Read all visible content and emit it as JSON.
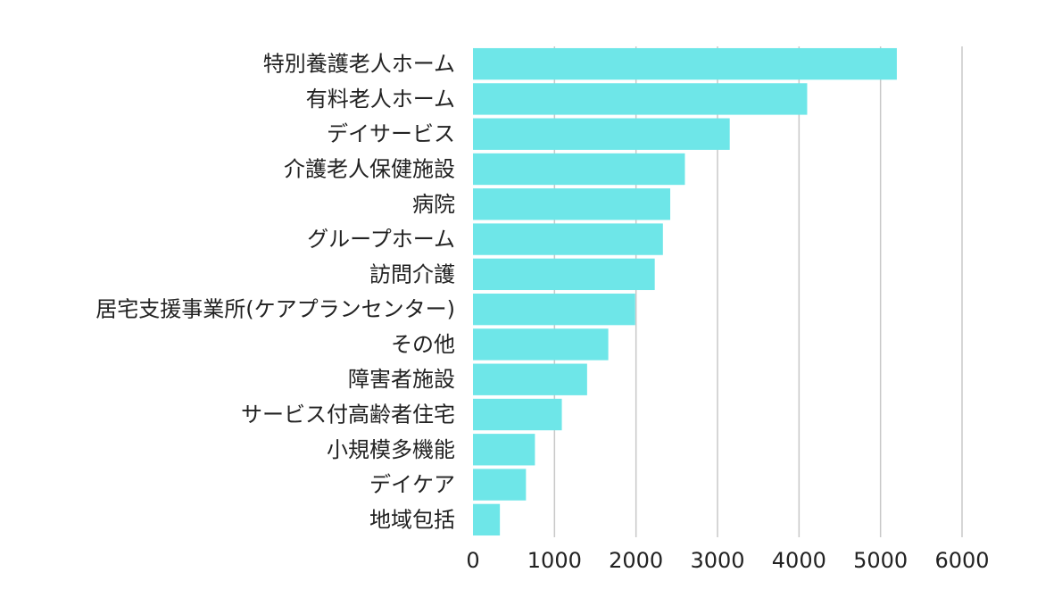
{
  "chart_data": {
    "type": "bar",
    "orientation": "horizontal",
    "title": "",
    "xlabel": "",
    "ylabel": "",
    "xlim": [
      0,
      6000
    ],
    "x_ticks": [
      0,
      1000,
      2000,
      3000,
      4000,
      5000,
      6000
    ],
    "grid": true,
    "bar_color": "#6ee6e8",
    "categories": [
      "特別養護老人ホーム",
      "有料老人ホーム",
      "デイサービス",
      "介護老人保健施設",
      "病院",
      "グループホーム",
      "訪問介護",
      "居宅支援事業所(ケアプランセンター)",
      "その他",
      "障害者施設",
      "サービス付高齢者住宅",
      "小規模多機能",
      "デイケア",
      "地域包括"
    ],
    "values": [
      5200,
      4100,
      3150,
      2600,
      2420,
      2330,
      2230,
      1990,
      1660,
      1400,
      1090,
      760,
      650,
      330
    ]
  }
}
